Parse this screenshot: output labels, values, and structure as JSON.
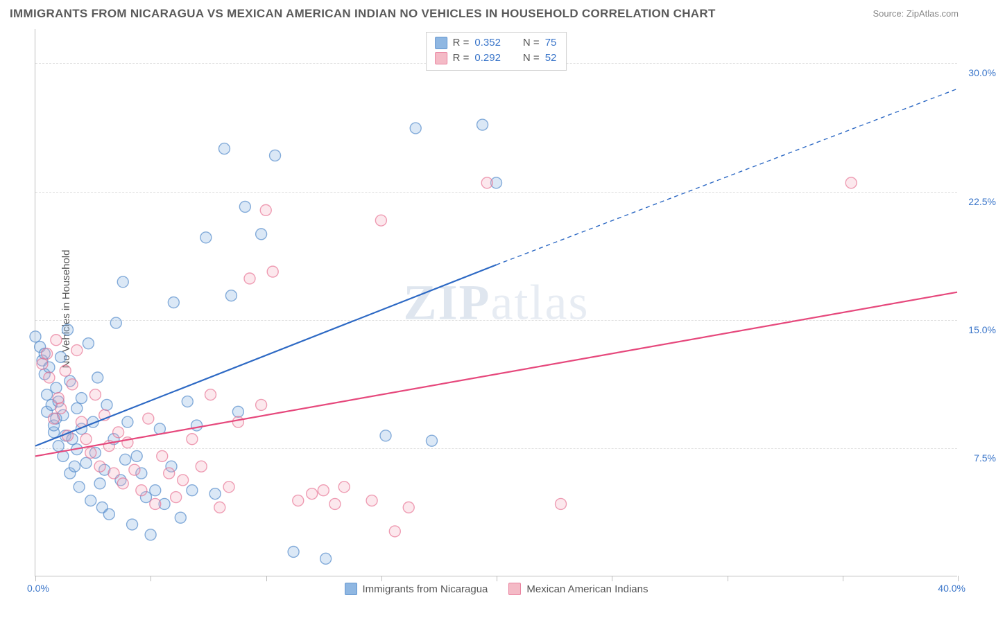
{
  "title": "IMMIGRANTS FROM NICARAGUA VS MEXICAN AMERICAN INDIAN NO VEHICLES IN HOUSEHOLD CORRELATION CHART",
  "source": "Source: ZipAtlas.com",
  "ylabel": "No Vehicles in Household",
  "watermark": "ZIPatlas",
  "chart": {
    "type": "scatter",
    "xlim": [
      0,
      40
    ],
    "ylim": [
      0,
      32
    ],
    "xtick_positions": [
      0,
      5,
      10,
      15,
      20,
      25,
      30,
      35,
      40
    ],
    "ytick_labels": [
      {
        "v": 7.5,
        "label": "7.5%"
      },
      {
        "v": 15.0,
        "label": "15.0%"
      },
      {
        "v": 22.5,
        "label": "22.5%"
      },
      {
        "v": 30.0,
        "label": "30.0%"
      }
    ],
    "xlim_labels": {
      "left": "0.0%",
      "right": "40.0%"
    },
    "background_color": "#ffffff",
    "grid_color": "#e0e0e0",
    "axis_color": "#bdbdbd",
    "tick_label_color": "#3874c9",
    "marker_radius": 8,
    "marker_fill_opacity": 0.28,
    "marker_stroke_opacity": 0.65,
    "marker_stroke_width": 1.4,
    "series": [
      {
        "name": "Immigrants from Nicaragua",
        "color_fill": "#7cabde",
        "color_stroke": "#4a84c7",
        "line_color": "#2d69c4",
        "line_width": 2.2,
        "regression": {
          "x1": 0,
          "y1": 7.6,
          "x2": 20,
          "y2": 18.2,
          "x2dash": 40,
          "y2dash": 28.5
        },
        "r": "0.352",
        "n": "75",
        "points": [
          [
            0.0,
            14.0
          ],
          [
            0.2,
            13.4
          ],
          [
            0.3,
            12.6
          ],
          [
            0.4,
            11.8
          ],
          [
            0.4,
            13.0
          ],
          [
            0.5,
            9.6
          ],
          [
            0.5,
            10.6
          ],
          [
            0.6,
            12.2
          ],
          [
            0.7,
            10.0
          ],
          [
            0.8,
            8.4
          ],
          [
            0.8,
            8.8
          ],
          [
            0.9,
            11.0
          ],
          [
            0.9,
            9.2
          ],
          [
            1.0,
            10.2
          ],
          [
            1.0,
            7.6
          ],
          [
            1.1,
            12.8
          ],
          [
            1.2,
            9.4
          ],
          [
            1.2,
            7.0
          ],
          [
            1.3,
            8.2
          ],
          [
            1.4,
            14.4
          ],
          [
            1.5,
            11.4
          ],
          [
            1.5,
            6.0
          ],
          [
            1.6,
            8.0
          ],
          [
            1.7,
            6.4
          ],
          [
            1.8,
            7.4
          ],
          [
            1.8,
            9.8
          ],
          [
            1.9,
            5.2
          ],
          [
            2.0,
            10.4
          ],
          [
            2.0,
            8.6
          ],
          [
            2.2,
            6.6
          ],
          [
            2.3,
            13.6
          ],
          [
            2.4,
            4.4
          ],
          [
            2.5,
            9.0
          ],
          [
            2.6,
            7.2
          ],
          [
            2.7,
            11.6
          ],
          [
            2.8,
            5.4
          ],
          [
            2.9,
            4.0
          ],
          [
            3.0,
            6.2
          ],
          [
            3.1,
            10.0
          ],
          [
            3.2,
            3.6
          ],
          [
            3.4,
            8.0
          ],
          [
            3.5,
            14.8
          ],
          [
            3.7,
            5.6
          ],
          [
            3.8,
            17.2
          ],
          [
            3.9,
            6.8
          ],
          [
            4.0,
            9.0
          ],
          [
            4.2,
            3.0
          ],
          [
            4.4,
            7.0
          ],
          [
            4.6,
            6.0
          ],
          [
            4.8,
            4.6
          ],
          [
            5.0,
            2.4
          ],
          [
            5.2,
            5.0
          ],
          [
            5.4,
            8.6
          ],
          [
            5.6,
            4.2
          ],
          [
            5.9,
            6.4
          ],
          [
            6.0,
            16.0
          ],
          [
            6.3,
            3.4
          ],
          [
            6.6,
            10.2
          ],
          [
            6.8,
            5.0
          ],
          [
            7.0,
            8.8
          ],
          [
            7.4,
            19.8
          ],
          [
            7.8,
            4.8
          ],
          [
            8.2,
            25.0
          ],
          [
            8.5,
            16.4
          ],
          [
            8.8,
            9.6
          ],
          [
            9.1,
            21.6
          ],
          [
            9.8,
            20.0
          ],
          [
            10.4,
            24.6
          ],
          [
            11.2,
            1.4
          ],
          [
            12.6,
            1.0
          ],
          [
            15.2,
            8.2
          ],
          [
            16.5,
            26.2
          ],
          [
            17.2,
            7.9
          ],
          [
            19.4,
            26.4
          ],
          [
            20.0,
            23.0
          ]
        ]
      },
      {
        "name": "Mexican American Indians",
        "color_fill": "#f3aebd",
        "color_stroke": "#e66d8f",
        "line_color": "#e6487c",
        "line_width": 2.2,
        "regression": {
          "x1": 0,
          "y1": 7.0,
          "x2": 40,
          "y2": 16.6
        },
        "r": "0.292",
        "n": "52",
        "points": [
          [
            0.3,
            12.4
          ],
          [
            0.5,
            13.0
          ],
          [
            0.6,
            11.6
          ],
          [
            0.8,
            9.2
          ],
          [
            0.9,
            13.8
          ],
          [
            1.0,
            10.4
          ],
          [
            1.1,
            9.8
          ],
          [
            1.3,
            12.0
          ],
          [
            1.4,
            8.2
          ],
          [
            1.6,
            11.2
          ],
          [
            1.8,
            13.2
          ],
          [
            2.0,
            9.0
          ],
          [
            2.2,
            8.0
          ],
          [
            2.4,
            7.2
          ],
          [
            2.6,
            10.6
          ],
          [
            2.8,
            6.4
          ],
          [
            3.0,
            9.4
          ],
          [
            3.2,
            7.6
          ],
          [
            3.4,
            6.0
          ],
          [
            3.6,
            8.4
          ],
          [
            3.8,
            5.4
          ],
          [
            4.0,
            7.8
          ],
          [
            4.3,
            6.2
          ],
          [
            4.6,
            5.0
          ],
          [
            4.9,
            9.2
          ],
          [
            5.2,
            4.2
          ],
          [
            5.5,
            7.0
          ],
          [
            5.8,
            6.0
          ],
          [
            6.1,
            4.6
          ],
          [
            6.4,
            5.6
          ],
          [
            6.8,
            8.0
          ],
          [
            7.2,
            6.4
          ],
          [
            7.6,
            10.6
          ],
          [
            8.0,
            4.0
          ],
          [
            8.4,
            5.2
          ],
          [
            8.8,
            9.0
          ],
          [
            9.3,
            17.4
          ],
          [
            9.8,
            10.0
          ],
          [
            10.0,
            21.4
          ],
          [
            10.3,
            17.8
          ],
          [
            11.4,
            4.4
          ],
          [
            12.0,
            4.8
          ],
          [
            12.5,
            5.0
          ],
          [
            13.0,
            4.2
          ],
          [
            13.4,
            5.2
          ],
          [
            14.6,
            4.4
          ],
          [
            15.0,
            20.8
          ],
          [
            15.6,
            2.6
          ],
          [
            16.2,
            4.0
          ],
          [
            19.6,
            23.0
          ],
          [
            22.8,
            4.2
          ],
          [
            35.4,
            23.0
          ]
        ]
      }
    ],
    "legend_top": {
      "border_color": "#cfcfcf",
      "rows": [
        {
          "swatch": 0,
          "r_label": "R =",
          "n_label": "N ="
        },
        {
          "swatch": 1,
          "r_label": "R =",
          "n_label": "N ="
        }
      ]
    },
    "legend_bottom": [
      {
        "swatch": 0
      },
      {
        "swatch": 1
      }
    ]
  }
}
